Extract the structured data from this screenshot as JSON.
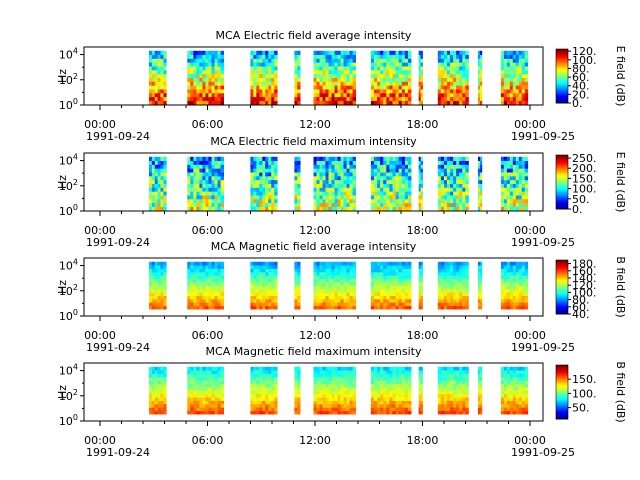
{
  "chart_data": [
    {
      "type": "heatmap",
      "title": "MCA  Electric field average intensity",
      "ylabel": "Hz",
      "y_scale": "log",
      "y_ticks": [
        "10",
        "10",
        "10"
      ],
      "y_tick_exponents": [
        "0",
        "2",
        "4"
      ],
      "x_ticks": [
        "00:00",
        "06:00",
        "12:00",
        "18:00",
        "00:00"
      ],
      "x_dates": [
        "1991-09-24",
        "1991-09-25"
      ],
      "colorbar_label": "E field (dB)",
      "colorbar_ticks": [
        "0.",
        "20.",
        "40.",
        "60.",
        "80.",
        "100.",
        "120."
      ],
      "colorbar_range": [
        0,
        125
      ],
      "colorscale": "rainbow-jet",
      "data_intervals_hours": [
        [
          3.4,
          4.3
        ],
        [
          5.4,
          7.3
        ],
        [
          8.7,
          10.1
        ],
        [
          11.0,
          11.3
        ],
        [
          12.0,
          14.2
        ],
        [
          15.0,
          17.1
        ],
        [
          17.5,
          17.7
        ],
        [
          18.5,
          20.1
        ],
        [
          20.6,
          20.8
        ],
        [
          21.8,
          23.2
        ]
      ]
    },
    {
      "type": "heatmap",
      "title": "MCA  Electric field maximum intensity",
      "ylabel": "Hz",
      "y_scale": "log",
      "y_ticks": [
        "10",
        "10",
        "10"
      ],
      "y_tick_exponents": [
        "0",
        "2",
        "4"
      ],
      "x_ticks": [
        "00:00",
        "06:00",
        "12:00",
        "18:00",
        "00:00"
      ],
      "x_dates": [
        "1991-09-24",
        "1991-09-25"
      ],
      "colorbar_label": "E field (dB)",
      "colorbar_ticks": [
        "0.",
        "50.",
        "100.",
        "150.",
        "200.",
        "250."
      ],
      "colorbar_range": [
        0,
        265
      ],
      "colorscale": "rainbow-jet",
      "data_intervals_hours": [
        [
          3.4,
          4.3
        ],
        [
          5.4,
          7.3
        ],
        [
          8.7,
          10.1
        ],
        [
          11.0,
          11.3
        ],
        [
          12.0,
          14.2
        ],
        [
          15.0,
          17.1
        ],
        [
          17.5,
          17.7
        ],
        [
          18.5,
          20.1
        ],
        [
          20.6,
          20.8
        ],
        [
          21.8,
          23.2
        ]
      ]
    },
    {
      "type": "heatmap",
      "title": "MCA  Magnetic field average intensity",
      "ylabel": "Hz",
      "y_scale": "log",
      "y_ticks": [
        "10",
        "10",
        "10"
      ],
      "y_tick_exponents": [
        "0",
        "2",
        "4"
      ],
      "x_ticks": [
        "00:00",
        "06:00",
        "12:00",
        "18:00",
        "00:00"
      ],
      "x_dates": [
        "1991-09-24",
        "1991-09-25"
      ],
      "colorbar_label": "B field (dB)",
      "colorbar_ticks": [
        "40.",
        "60.",
        "80.",
        "100.",
        "120.",
        "140.",
        "160.",
        "180."
      ],
      "colorbar_range": [
        40,
        190
      ],
      "colorscale": "rainbow-jet",
      "data_intervals_hours": [
        [
          3.4,
          4.3
        ],
        [
          5.4,
          7.3
        ],
        [
          8.7,
          10.1
        ],
        [
          11.0,
          11.3
        ],
        [
          12.0,
          14.2
        ],
        [
          15.0,
          17.1
        ],
        [
          17.5,
          17.7
        ],
        [
          18.5,
          20.1
        ],
        [
          20.6,
          20.8
        ],
        [
          21.8,
          23.2
        ]
      ]
    },
    {
      "type": "heatmap",
      "title": "MCA  Magnetic field maximum intensity",
      "ylabel": "Hz",
      "y_scale": "log",
      "y_ticks": [
        "10",
        "10",
        "10"
      ],
      "y_tick_exponents": [
        "0",
        "2",
        "4"
      ],
      "x_ticks": [
        "00:00",
        "06:00",
        "12:00",
        "18:00",
        "00:00"
      ],
      "x_dates": [
        "1991-09-24",
        "1991-09-25"
      ],
      "colorbar_label": "B field (dB)",
      "colorbar_ticks": [
        "50.",
        "100.",
        "150."
      ],
      "colorbar_range": [
        10,
        200
      ],
      "colorscale": "rainbow-jet",
      "data_intervals_hours": [
        [
          3.4,
          4.3
        ],
        [
          5.4,
          7.3
        ],
        [
          8.7,
          10.1
        ],
        [
          11.0,
          11.3
        ],
        [
          12.0,
          14.2
        ],
        [
          15.0,
          17.1
        ],
        [
          17.5,
          17.7
        ],
        [
          18.5,
          20.1
        ],
        [
          20.6,
          20.8
        ],
        [
          21.8,
          23.2
        ]
      ]
    }
  ]
}
